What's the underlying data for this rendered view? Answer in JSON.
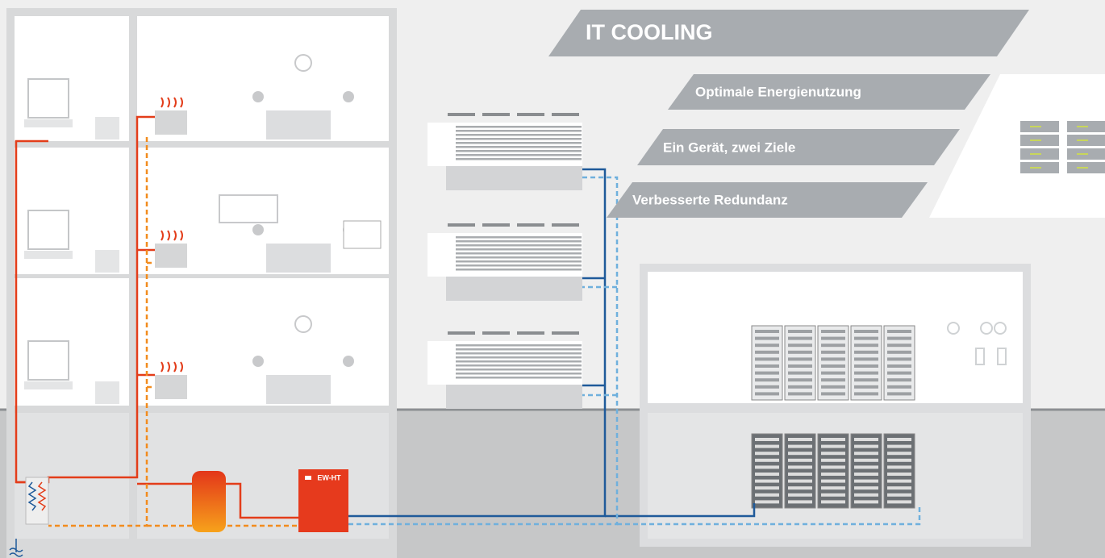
{
  "banner": {
    "title": "IT COOLING",
    "items": [
      "Optimale Energienutzung",
      "Ein Gerät, zwei Ziele",
      "Verbesserte Redundanz"
    ]
  },
  "device": {
    "label": "EW-HT"
  }
}
